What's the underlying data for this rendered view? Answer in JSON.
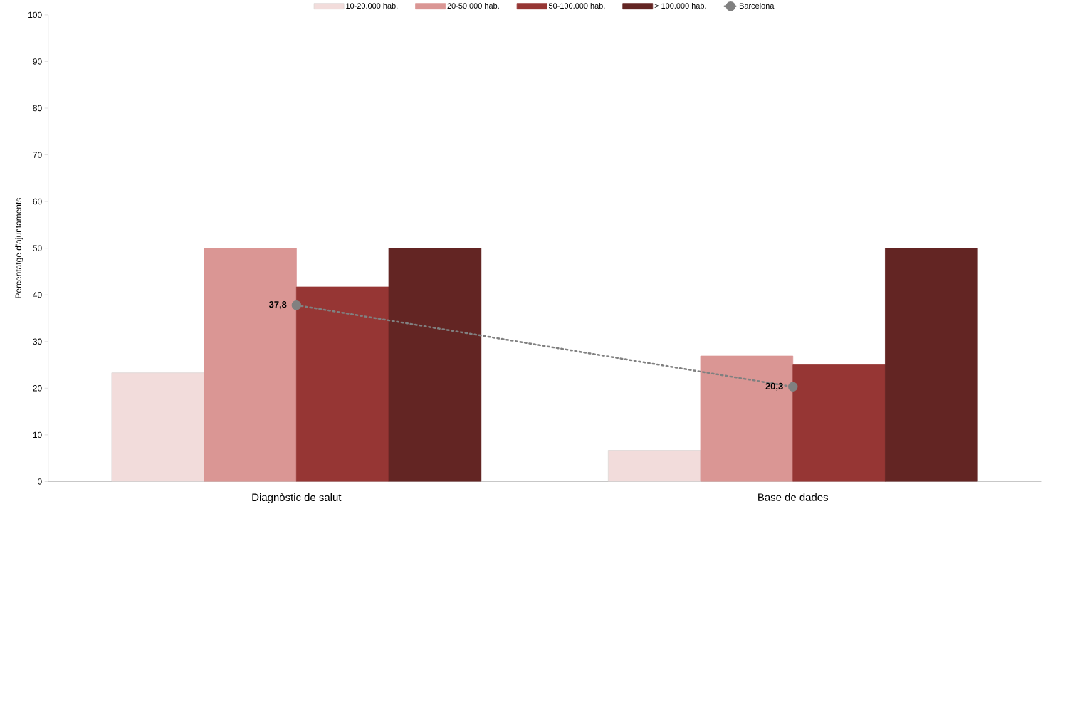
{
  "chart_data": {
    "type": "bar",
    "ylabel": "Percentatge d'ajuntaments",
    "categories": [
      "Diagnòstic de salut",
      "Base de dades"
    ],
    "ylim": [
      0,
      100
    ],
    "yticks": [
      0,
      10,
      20,
      30,
      40,
      50,
      60,
      70,
      80,
      90,
      100
    ],
    "legend": "top",
    "grid": false,
    "series": [
      {
        "name": "10-20.000 hab.",
        "color": "#f2dcdb",
        "values": [
          23.3,
          6.7
        ]
      },
      {
        "name": "20-50.000 hab.",
        "color": "#da9694",
        "values": [
          50,
          26.9
        ]
      },
      {
        "name": "50-100.000 hab.",
        "color": "#963634",
        "values": [
          41.7,
          25
        ]
      },
      {
        "name": "> 100.000 hab.",
        "color": "#632523",
        "values": [
          50,
          50
        ]
      },
      {
        "name": "Barcelona",
        "type": "line",
        "color": "#808080",
        "marker": "circle",
        "line_style": "dotted",
        "values": [
          37.8,
          20.3
        ],
        "value_labels": [
          "37,8",
          "20,3"
        ]
      }
    ]
  }
}
